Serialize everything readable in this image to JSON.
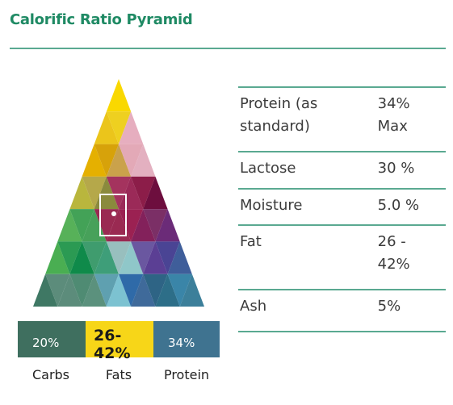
{
  "title": "Calorific Ratio Pyramid",
  "pyramid": {
    "rows": [
      [
        "#f9d800"
      ],
      [
        "#ebc51b",
        "#eed020",
        "#e6aebf"
      ],
      [
        "#e5b000",
        "#d7a20a",
        "#caa24b",
        "#e3a9b7",
        "#e3b0c0"
      ],
      [
        "#b9b63d",
        "#b5a84a",
        "#8a8a3d",
        "#a4335e",
        "#9b2a58",
        "#8c1d49",
        "#6d0e3e"
      ],
      [
        "#57b159",
        "#43a257",
        "#47a15a",
        "#9a2a52",
        "#9a2a52",
        "#9b2152",
        "#83215b",
        "#7b2f66",
        "#6b2b78"
      ],
      [
        "#4aae52",
        "#2b9a53",
        "#0f8a4a",
        "#3f9c6e",
        "#3e9e79",
        "#98bfbe",
        "#8fc7c9",
        "#6a57a0",
        "#5b3f94",
        "#4a4494",
        "#3f5e9a"
      ],
      [
        "#3f7864",
        "#5c8c7b",
        "#5c8c7b",
        "#4f8b73",
        "#5b917d",
        "#5fa0b0",
        "#7cc2d1",
        "#2f6aa8",
        "#3f6a9a",
        "#2e6485",
        "#2d6e88",
        "#3a85a8",
        "#3c7f9a"
      ]
    ]
  },
  "bar": {
    "carbs": {
      "value": "20%",
      "label": "Carbs",
      "color": "#3f6f5f"
    },
    "fats": {
      "value": "26-42%",
      "label": "Fats",
      "color": "#f7d618"
    },
    "protein": {
      "value": "34%",
      "label": "Protein",
      "color": "#3f7390"
    }
  },
  "table": {
    "rows": [
      {
        "name": "Protein (as\nstandard)",
        "value": "34%\nMax"
      },
      {
        "name": "Lactose",
        "value": "30 %"
      },
      {
        "name": "Moisture",
        "value": "5.0 %"
      },
      {
        "name": "Fat",
        "value": "26 -\n42%"
      },
      {
        "name": "Ash",
        "value": "5%"
      }
    ]
  }
}
